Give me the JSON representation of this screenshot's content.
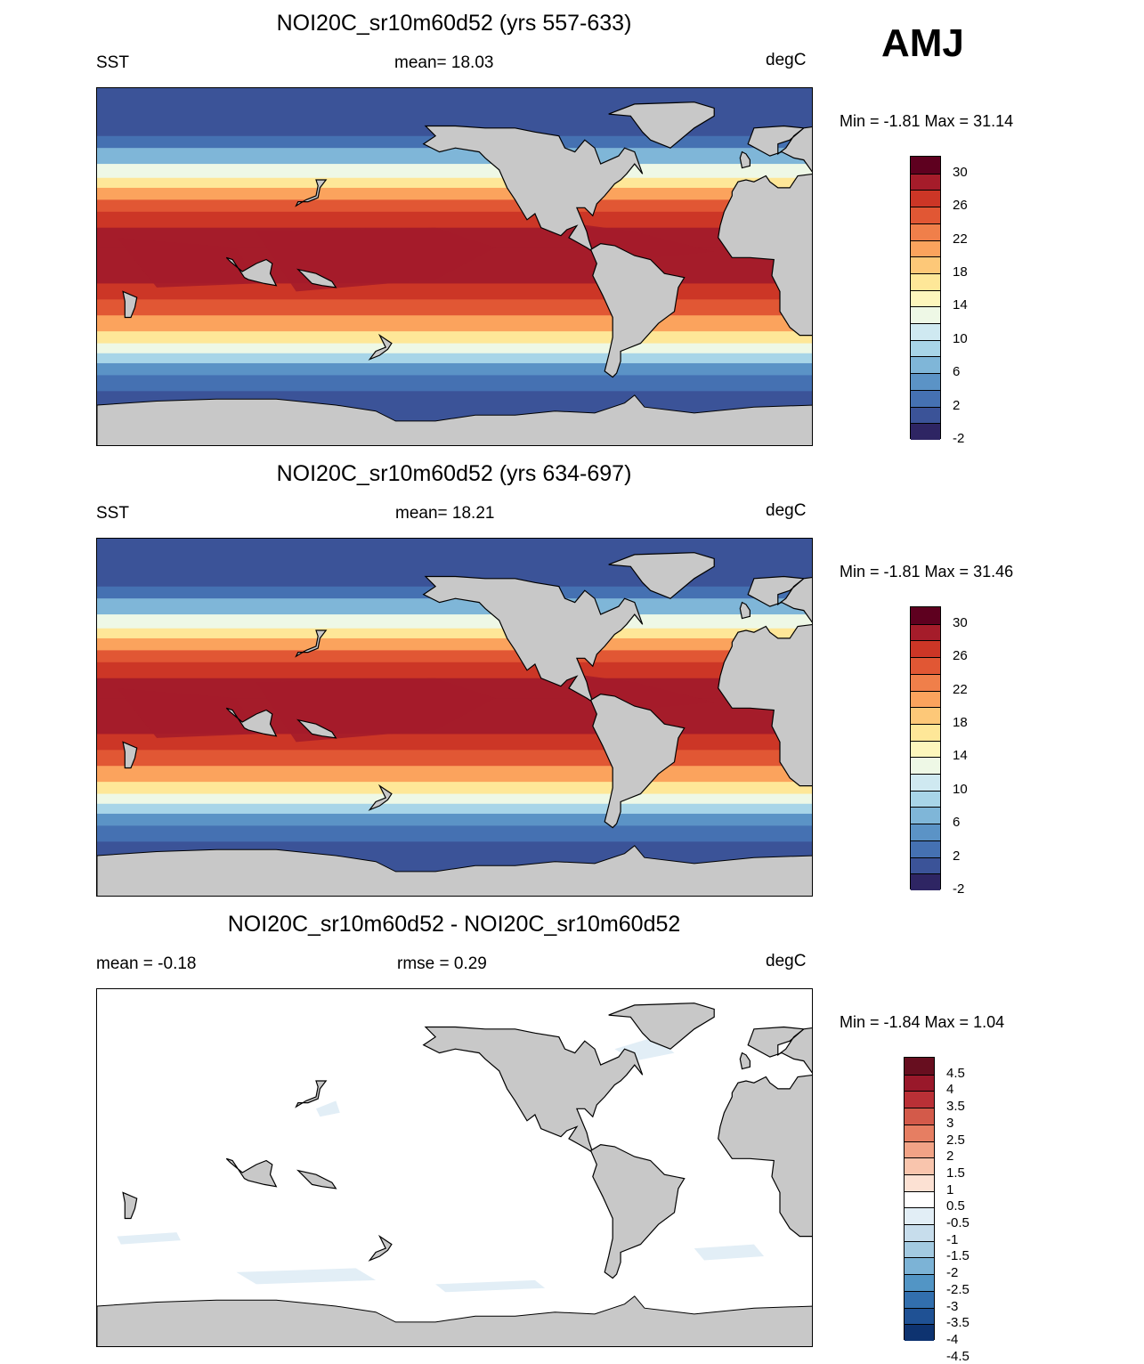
{
  "season_label": "AMJ",
  "panels": [
    {
      "title": "NOI20C_sr10m60d52 (yrs 557-633)",
      "left_label": "SST",
      "center_label": "mean=  18.03",
      "right_label": "degC",
      "minmax": "Min =  -1.81 Max =  31.14",
      "type": "sst"
    },
    {
      "title": "NOI20C_sr10m60d52 (yrs 634-697)",
      "left_label": "SST",
      "center_label": "mean=  18.21",
      "right_label": "degC",
      "minmax": "Min =  -1.81 Max =  31.46",
      "type": "sst"
    },
    {
      "title": "NOI20C_sr10m60d52 - NOI20C_sr10m60d52",
      "left_label": "mean =  -0.18",
      "center_label": "rmse =   0.29",
      "right_label": "degC",
      "minmax": "Min =  -1.84 Max =    1.04",
      "type": "diff"
    }
  ],
  "sst_colorbar": {
    "colors": [
      "#5e001f",
      "#a51c2a",
      "#cc3626",
      "#e15734",
      "#f07f4a",
      "#fba35d",
      "#fdc878",
      "#fee798",
      "#fdf6bc",
      "#eef8e6",
      "#cfe9f1",
      "#a8d5e8",
      "#7fb6d8",
      "#5b93c6",
      "#4571b2",
      "#3b5398",
      "#2e2563"
    ],
    "labels": [
      "30",
      "26",
      "22",
      "18",
      "14",
      "10",
      "6",
      "2",
      "-2"
    ]
  },
  "diff_colorbar": {
    "colors": [
      "#670e1f",
      "#99182a",
      "#ba3036",
      "#d35a4a",
      "#e67e62",
      "#f2a386",
      "#f9c5ad",
      "#fce1d3",
      "#ffffff",
      "#e2eef6",
      "#c7ddec",
      "#a3cae1",
      "#7cb3d6",
      "#5295c5",
      "#326fae",
      "#1f5194",
      "#0e3370"
    ],
    "labels": [
      "4.5",
      "4",
      "3.5",
      "3",
      "2.5",
      "2",
      "1.5",
      "1",
      "0.5",
      "-0.5",
      "-1",
      "-1.5",
      "-2",
      "-2.5",
      "-3",
      "-3.5",
      "-4",
      "-4.5"
    ]
  }
}
